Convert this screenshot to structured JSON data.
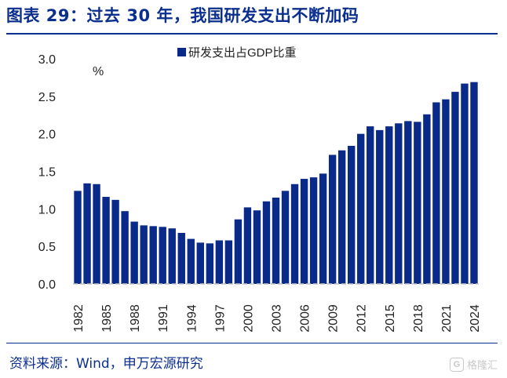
{
  "header": {
    "title": "图表 29：过去 30 年，我国研发支出不断加码"
  },
  "footer": {
    "source": "资料来源：Wind，申万宏源研究",
    "watermark_text": "格隆汇",
    "watermark_badge": "G"
  },
  "colors": {
    "bar": "#0a2a8a",
    "title": "#0b2f8e",
    "axis": "#bfbfbf"
  },
  "chart_data": {
    "type": "bar",
    "unit_label": "%",
    "legend": "研发支出占GDP比重",
    "legend_position": "top-center",
    "ylim": [
      0,
      3.0
    ],
    "yticks": [
      "0.0",
      "0.5",
      "1.0",
      "1.5",
      "2.0",
      "2.5",
      "3.0"
    ],
    "grid": false,
    "series": [
      {
        "name": "研发支出占GDP比重",
        "categories": [
          "1982",
          "1983",
          "1984",
          "1985",
          "1986",
          "1987",
          "1988",
          "1989",
          "1990",
          "1991",
          "1992",
          "1993",
          "1994",
          "1995",
          "1996",
          "1997",
          "1998",
          "1999",
          "2000",
          "2001",
          "2002",
          "2003",
          "2004",
          "2005",
          "2006",
          "2007",
          "2008",
          "2009",
          "2010",
          "2011",
          "2012",
          "2013",
          "2014",
          "2015",
          "2016",
          "2017",
          "2018",
          "2019",
          "2020",
          "2021",
          "2022",
          "2023",
          "2024"
        ],
        "values": [
          1.24,
          1.34,
          1.33,
          1.16,
          1.12,
          0.97,
          0.83,
          0.78,
          0.77,
          0.76,
          0.74,
          0.68,
          0.6,
          0.55,
          0.54,
          0.58,
          0.58,
          0.86,
          1.02,
          0.98,
          1.1,
          1.15,
          1.24,
          1.33,
          1.4,
          1.42,
          1.47,
          1.72,
          1.78,
          1.84,
          2.0,
          2.1,
          2.05,
          2.1,
          2.14,
          2.17,
          2.16,
          2.26,
          2.42,
          2.46,
          2.56,
          2.67,
          2.69
        ]
      }
    ],
    "xtick_labels": [
      "1982",
      "1985",
      "1988",
      "1991",
      "1994",
      "1997",
      "2000",
      "2003",
      "2006",
      "2009",
      "2012",
      "2015",
      "2018",
      "2021",
      "2024"
    ]
  }
}
